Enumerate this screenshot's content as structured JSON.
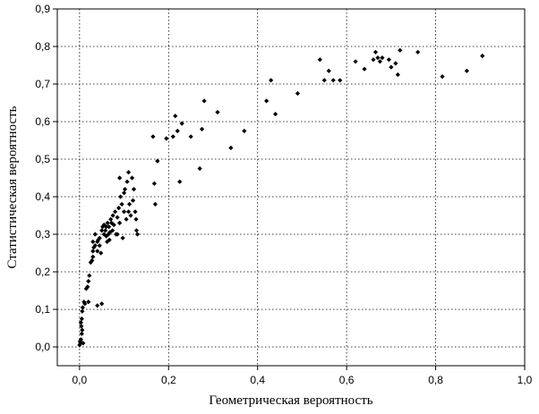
{
  "chart_data": {
    "type": "scatter",
    "xlabel": "Геометрическая вероятность",
    "ylabel": "Статистическая вероятность",
    "xlim": [
      -0.05,
      1.0
    ],
    "ylim": [
      -0.05,
      0.9
    ],
    "x_ticks": [
      0.0,
      0.2,
      0.4,
      0.6,
      0.8,
      1.0
    ],
    "x_tick_labels": [
      "0,0",
      "0,2",
      "0,4",
      "0,6",
      "0,8",
      "1,0"
    ],
    "y_ticks": [
      0.0,
      0.1,
      0.2,
      0.3,
      0.4,
      0.5,
      0.6,
      0.7,
      0.8,
      0.9
    ],
    "y_tick_labels": [
      "0,0",
      "0,1",
      "0,2",
      "0,3",
      "0,4",
      "0,5",
      "0,6",
      "0,7",
      "0,8",
      "0,9"
    ],
    "grid": true,
    "marker": "diamond",
    "marker_color": "#000000",
    "points": [
      [
        0.0,
        0.005
      ],
      [
        0.001,
        0.015
      ],
      [
        0.002,
        0.01
      ],
      [
        0.003,
        0.02
      ],
      [
        0.004,
        0.012
      ],
      [
        0.005,
        0.035
      ],
      [
        0.006,
        0.045
      ],
      [
        0.004,
        0.055
      ],
      [
        0.003,
        0.065
      ],
      [
        0.005,
        0.075
      ],
      [
        0.008,
        0.01
      ],
      [
        0.006,
        0.095
      ],
      [
        0.007,
        0.105
      ],
      [
        0.01,
        0.12
      ],
      [
        0.012,
        0.115
      ],
      [
        0.015,
        0.155
      ],
      [
        0.018,
        0.16
      ],
      [
        0.02,
        0.175
      ],
      [
        0.022,
        0.19
      ],
      [
        0.02,
        0.12
      ],
      [
        0.025,
        0.225
      ],
      [
        0.028,
        0.23
      ],
      [
        0.03,
        0.24
      ],
      [
        0.03,
        0.255
      ],
      [
        0.032,
        0.265
      ],
      [
        0.035,
        0.27
      ],
      [
        0.035,
        0.3
      ],
      [
        0.04,
        0.28
      ],
      [
        0.04,
        0.255
      ],
      [
        0.042,
        0.285
      ],
      [
        0.045,
        0.29
      ],
      [
        0.045,
        0.27
      ],
      [
        0.048,
        0.25
      ],
      [
        0.05,
        0.31
      ],
      [
        0.052,
        0.32
      ],
      [
        0.055,
        0.325
      ],
      [
        0.055,
        0.3
      ],
      [
        0.058,
        0.31
      ],
      [
        0.06,
        0.295
      ],
      [
        0.06,
        0.32
      ],
      [
        0.062,
        0.28
      ],
      [
        0.063,
        0.33
      ],
      [
        0.065,
        0.3
      ],
      [
        0.066,
        0.32
      ],
      [
        0.067,
        0.285
      ],
      [
        0.068,
        0.305
      ],
      [
        0.07,
        0.34
      ],
      [
        0.072,
        0.33
      ],
      [
        0.074,
        0.31
      ],
      [
        0.075,
        0.35
      ],
      [
        0.077,
        0.325
      ],
      [
        0.08,
        0.36
      ],
      [
        0.082,
        0.3
      ],
      [
        0.085,
        0.345
      ],
      [
        0.088,
        0.37
      ],
      [
        0.09,
        0.33
      ],
      [
        0.092,
        0.4
      ],
      [
        0.095,
        0.38
      ],
      [
        0.097,
        0.29
      ],
      [
        0.1,
        0.36
      ],
      [
        0.1,
        0.41
      ],
      [
        0.102,
        0.42
      ],
      [
        0.105,
        0.34
      ],
      [
        0.107,
        0.44
      ],
      [
        0.11,
        0.465
      ],
      [
        0.11,
        0.36
      ],
      [
        0.112,
        0.38
      ],
      [
        0.115,
        0.35
      ],
      [
        0.118,
        0.45
      ],
      [
        0.12,
        0.39
      ],
      [
        0.122,
        0.42
      ],
      [
        0.125,
        0.36
      ],
      [
        0.127,
        0.34
      ],
      [
        0.128,
        0.31
      ],
      [
        0.13,
        0.3
      ],
      [
        0.09,
        0.45
      ],
      [
        0.085,
        0.3
      ],
      [
        0.05,
        0.115
      ],
      [
        0.04,
        0.11
      ],
      [
        0.03,
        0.28
      ],
      [
        0.165,
        0.56
      ],
      [
        0.168,
        0.435
      ],
      [
        0.17,
        0.38
      ],
      [
        0.175,
        0.495
      ],
      [
        0.195,
        0.555
      ],
      [
        0.21,
        0.56
      ],
      [
        0.215,
        0.615
      ],
      [
        0.22,
        0.575
      ],
      [
        0.225,
        0.44
      ],
      [
        0.23,
        0.595
      ],
      [
        0.25,
        0.56
      ],
      [
        0.27,
        0.475
      ],
      [
        0.275,
        0.58
      ],
      [
        0.28,
        0.655
      ],
      [
        0.31,
        0.625
      ],
      [
        0.34,
        0.53
      ],
      [
        0.37,
        0.575
      ],
      [
        0.42,
        0.655
      ],
      [
        0.43,
        0.71
      ],
      [
        0.44,
        0.62
      ],
      [
        0.49,
        0.675
      ],
      [
        0.54,
        0.765
      ],
      [
        0.55,
        0.71
      ],
      [
        0.56,
        0.735
      ],
      [
        0.57,
        0.71
      ],
      [
        0.585,
        0.71
      ],
      [
        0.62,
        0.76
      ],
      [
        0.64,
        0.74
      ],
      [
        0.66,
        0.765
      ],
      [
        0.665,
        0.785
      ],
      [
        0.67,
        0.77
      ],
      [
        0.675,
        0.76
      ],
      [
        0.68,
        0.77
      ],
      [
        0.695,
        0.765
      ],
      [
        0.7,
        0.745
      ],
      [
        0.71,
        0.755
      ],
      [
        0.715,
        0.725
      ],
      [
        0.72,
        0.79
      ],
      [
        0.76,
        0.785
      ],
      [
        0.815,
        0.72
      ],
      [
        0.87,
        0.735
      ],
      [
        0.905,
        0.775
      ]
    ]
  }
}
